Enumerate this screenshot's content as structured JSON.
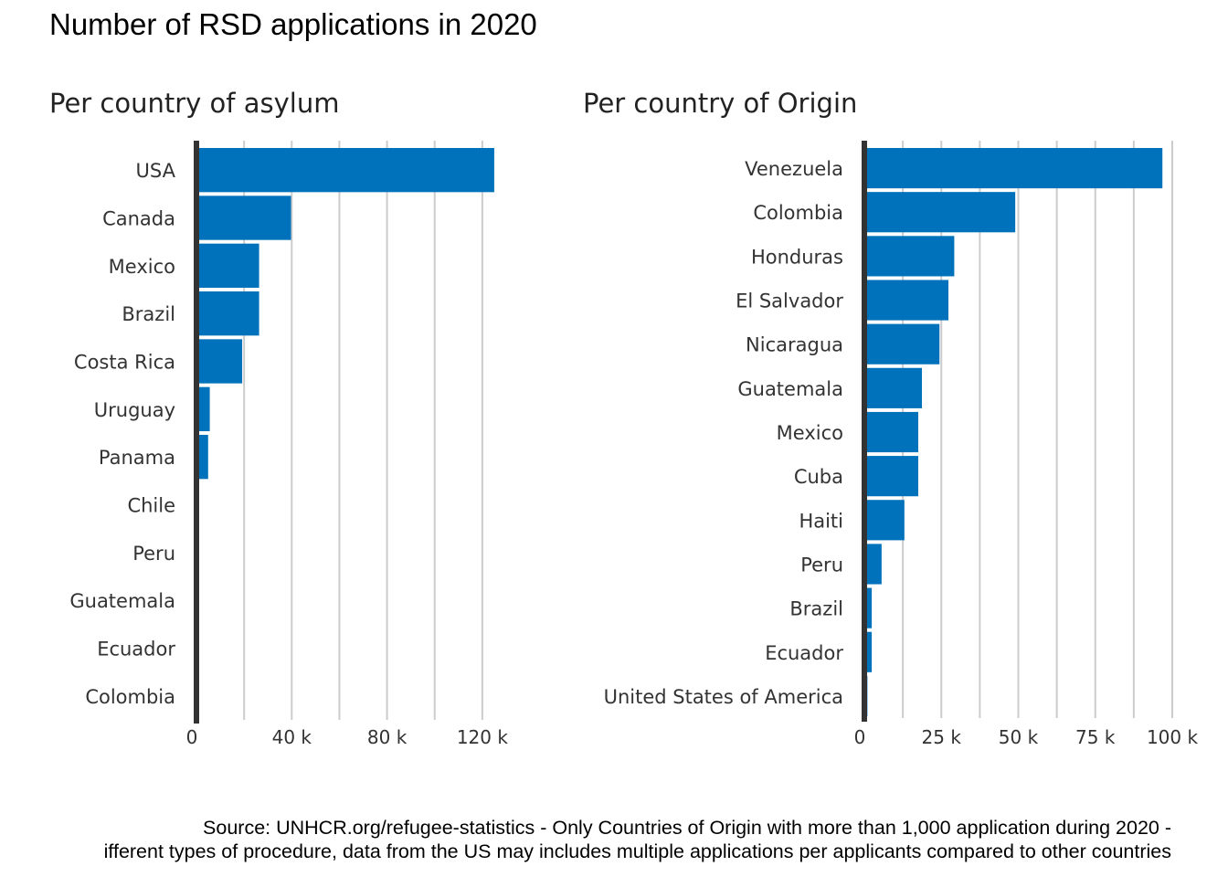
{
  "title": "Number of RSD applications in 2020",
  "caption": {
    "line1": "Source: UNHCR.org/refugee-statistics - Only Countries of Origin with more than 1,000 application during 2020 -",
    "line2": "ifferent types of procedure, data from the US may includes multiple applications per applicants compared to other countries"
  },
  "colors": {
    "bar": "#0072BC",
    "axis": "#333333",
    "grid": "#CCCCCC"
  },
  "chart_data": [
    {
      "type": "bar",
      "orientation": "horizontal",
      "subtitle": "Per country of asylum",
      "categories": [
        "USA",
        "Canada",
        "Mexico",
        "Brazil",
        "Costa Rica",
        "Uruguay",
        "Panama",
        "Chile",
        "Peru",
        "Guatemala",
        "Ecuador",
        "Colombia"
      ],
      "values": [
        125000,
        39700,
        26300,
        26300,
        19200,
        5600,
        4900,
        900,
        800,
        150,
        100,
        50
      ],
      "xlim": [
        0,
        135000
      ],
      "xticks": [
        0,
        40000,
        80000,
        120000
      ],
      "xtick_labels": [
        "0",
        "40 k",
        "80 k",
        "120 k"
      ],
      "grid": true
    },
    {
      "type": "bar",
      "orientation": "horizontal",
      "subtitle": "Per country of Origin",
      "categories": [
        "Venezuela",
        "Colombia",
        "Honduras",
        "El Salvador",
        "Nicaragua",
        "Guatemala",
        "Mexico",
        "Cuba",
        "Haiti",
        "Peru",
        "Brazil",
        "Ecuador",
        "United States of America"
      ],
      "values": [
        96800,
        49000,
        29200,
        27300,
        24400,
        18700,
        17500,
        17500,
        13000,
        5600,
        2400,
        2400,
        1000
      ],
      "xlim": [
        0,
        100000
      ],
      "xticks": [
        0,
        25000,
        50000,
        75000,
        100000
      ],
      "xtick_labels": [
        "0",
        "25 k",
        "50 k",
        "75 k",
        "100 k"
      ],
      "grid": true
    }
  ]
}
